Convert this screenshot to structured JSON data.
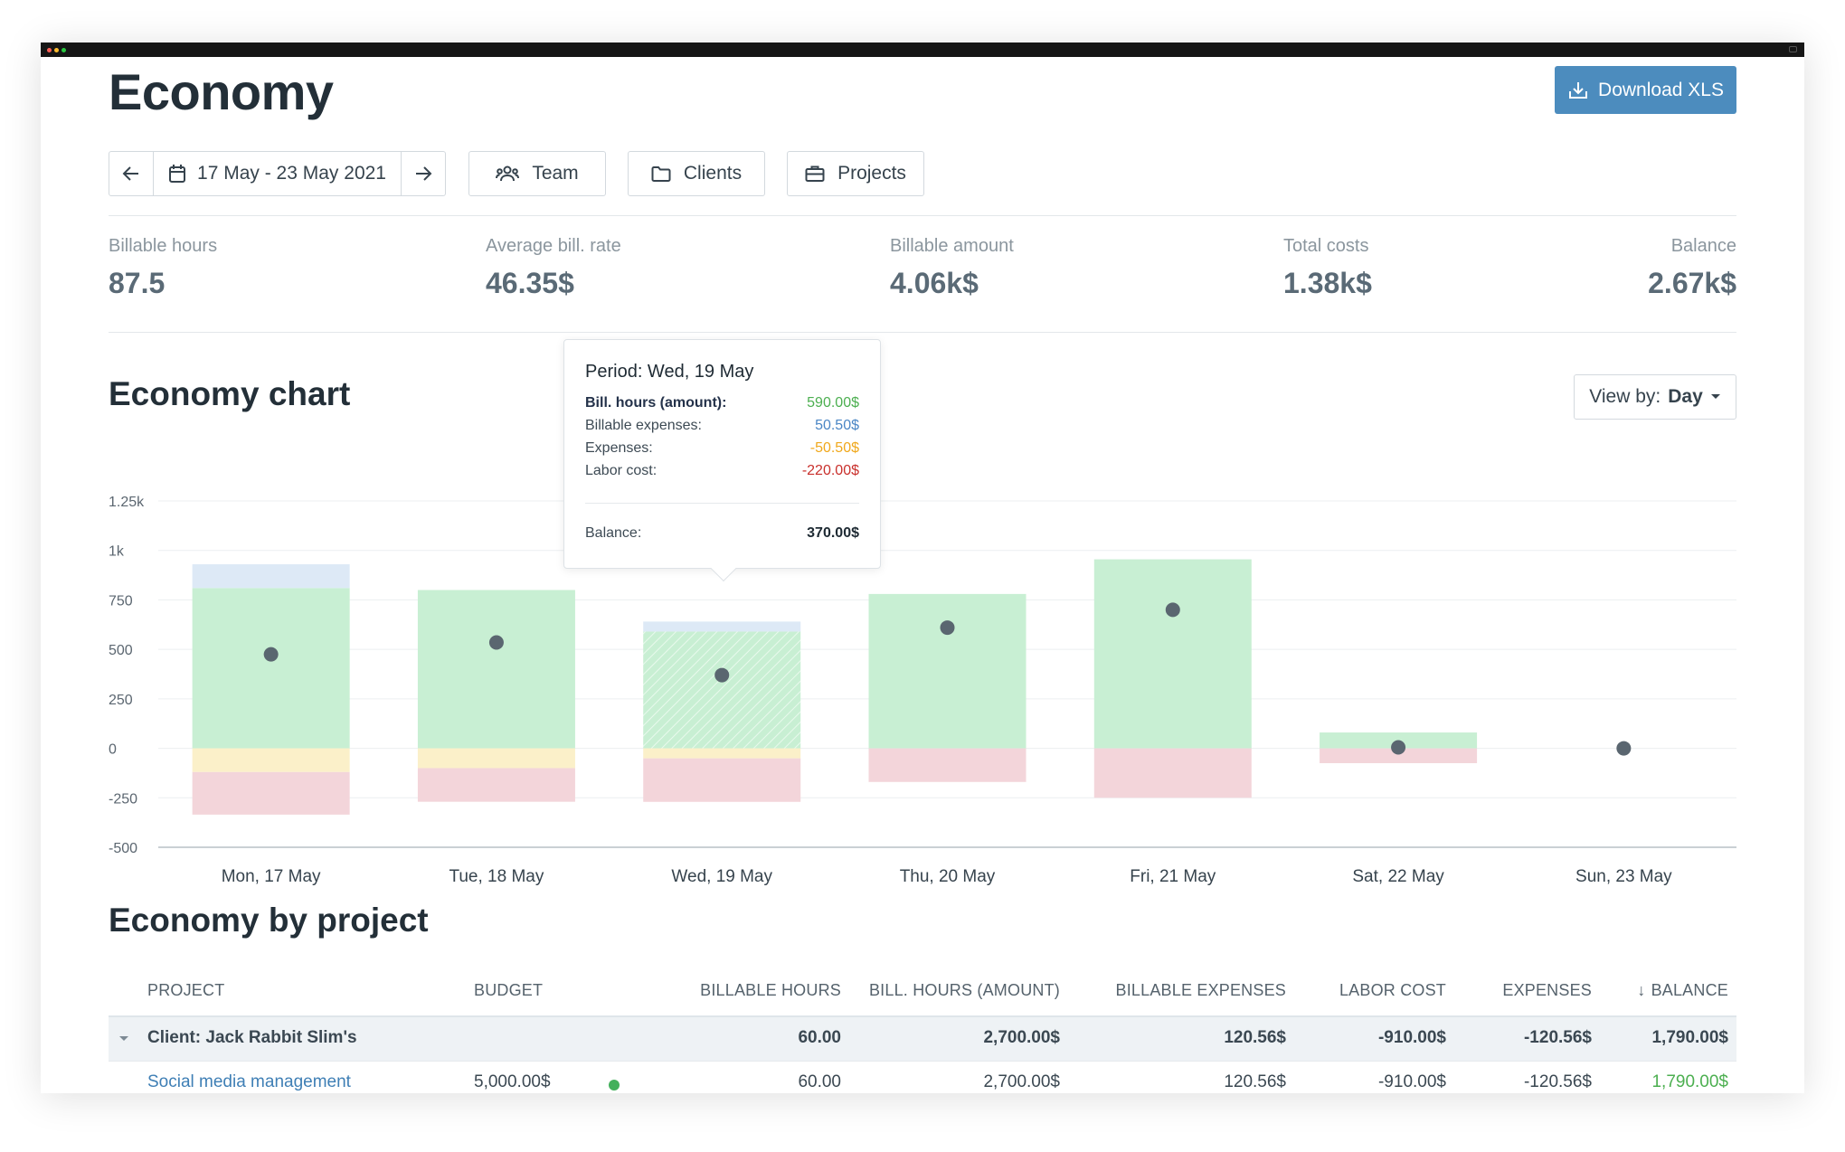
{
  "header": {
    "title": "Economy",
    "download_label": "Download XLS"
  },
  "filters": {
    "date_range": "17 May - 23 May 2021",
    "team_label": "Team",
    "clients_label": "Clients",
    "projects_label": "Projects"
  },
  "stats": [
    {
      "label": "Billable hours",
      "value": "87.5"
    },
    {
      "label": "Average bill. rate",
      "value": "46.35$"
    },
    {
      "label": "Billable amount",
      "value": "4.06k$"
    },
    {
      "label": "Total costs",
      "value": "1.38k$"
    },
    {
      "label": "Balance",
      "value": "2.67k$"
    }
  ],
  "chart_section": {
    "title": "Economy chart",
    "view_by_label": "View by:",
    "view_by_value": "Day"
  },
  "tooltip": {
    "title": "Period: Wed, 19 May",
    "rows": [
      {
        "label": "Bill. hours (amount):",
        "value": "590.00$"
      },
      {
        "label": "Billable expenses:",
        "value": "50.50$"
      },
      {
        "label": "Expenses:",
        "value": "-50.50$"
      },
      {
        "label": "Labor cost:",
        "value": "-220.00$"
      }
    ],
    "balance_label": "Balance:",
    "balance_value": "370.00$"
  },
  "chart_data": {
    "type": "bar",
    "stacked": true,
    "categories": [
      "Mon, 17 May",
      "Tue, 18 May",
      "Wed, 19 May",
      "Thu, 20 May",
      "Fri, 21 May",
      "Sat, 22 May",
      "Sun, 23 May"
    ],
    "series": [
      {
        "name": "Bill. hours (amount)",
        "values": [
          810,
          800,
          590,
          780,
          955,
          80,
          0
        ]
      },
      {
        "name": "Billable expenses",
        "values": [
          120,
          0,
          50.5,
          0,
          0,
          0,
          0
        ]
      },
      {
        "name": "Expenses",
        "values": [
          -120,
          -100,
          -50.5,
          0,
          0,
          0,
          0
        ]
      },
      {
        "name": "Labor cost",
        "values": [
          -215,
          -170,
          -220,
          -170,
          -250,
          -75,
          0
        ]
      },
      {
        "name": "Balance",
        "type": "scatter",
        "values": [
          475,
          535,
          370,
          610,
          700,
          5,
          0
        ]
      }
    ],
    "yticks": [
      "1.25k",
      "1k",
      "750",
      "500",
      "250",
      "0",
      "-250",
      "-500"
    ],
    "ylim": [
      -500,
      1250
    ],
    "colors": {
      "Bill. hours (amount)": "#c8efd3",
      "Billable expenses": "#dde9f6",
      "Expenses": "#fbf0c9",
      "Labor cost": "#f3d5da",
      "Balance": "#5a6670"
    },
    "highlight_index": 2,
    "grid": true
  },
  "project_section": {
    "title": "Economy by project",
    "columns": [
      "PROJECT",
      "BUDGET",
      "BILLABLE HOURS",
      "BILL. HOURS (AMOUNT)",
      "BILLABLE EXPENSES",
      "LABOR COST",
      "EXPENSES",
      "BALANCE"
    ],
    "sort_arrow": "↓",
    "group": {
      "name": "Client: Jack Rabbit Slim's",
      "billable_hours": "60.00",
      "bill_hours_amount": "2,700.00$",
      "billable_expenses": "120.56$",
      "labor_cost": "-910.00$",
      "expenses": "-120.56$",
      "balance": "1,790.00$"
    },
    "rows": [
      {
        "project": "Social media management",
        "budget": "5,000.00$",
        "billable_hours": "60.00",
        "bill_hours_amount": "2,700.00$",
        "billable_expenses": "120.56$",
        "labor_cost": "-910.00$",
        "expenses": "-120.56$",
        "balance": "1,790.00$"
      }
    ]
  },
  "colors": {
    "accent": "#4c8cbe",
    "positive": "#4caf50",
    "billable_expenses": "#4a86c5",
    "expenses": "#f0a81c",
    "labor_cost": "#c9302c",
    "link": "#3f7fb5"
  }
}
